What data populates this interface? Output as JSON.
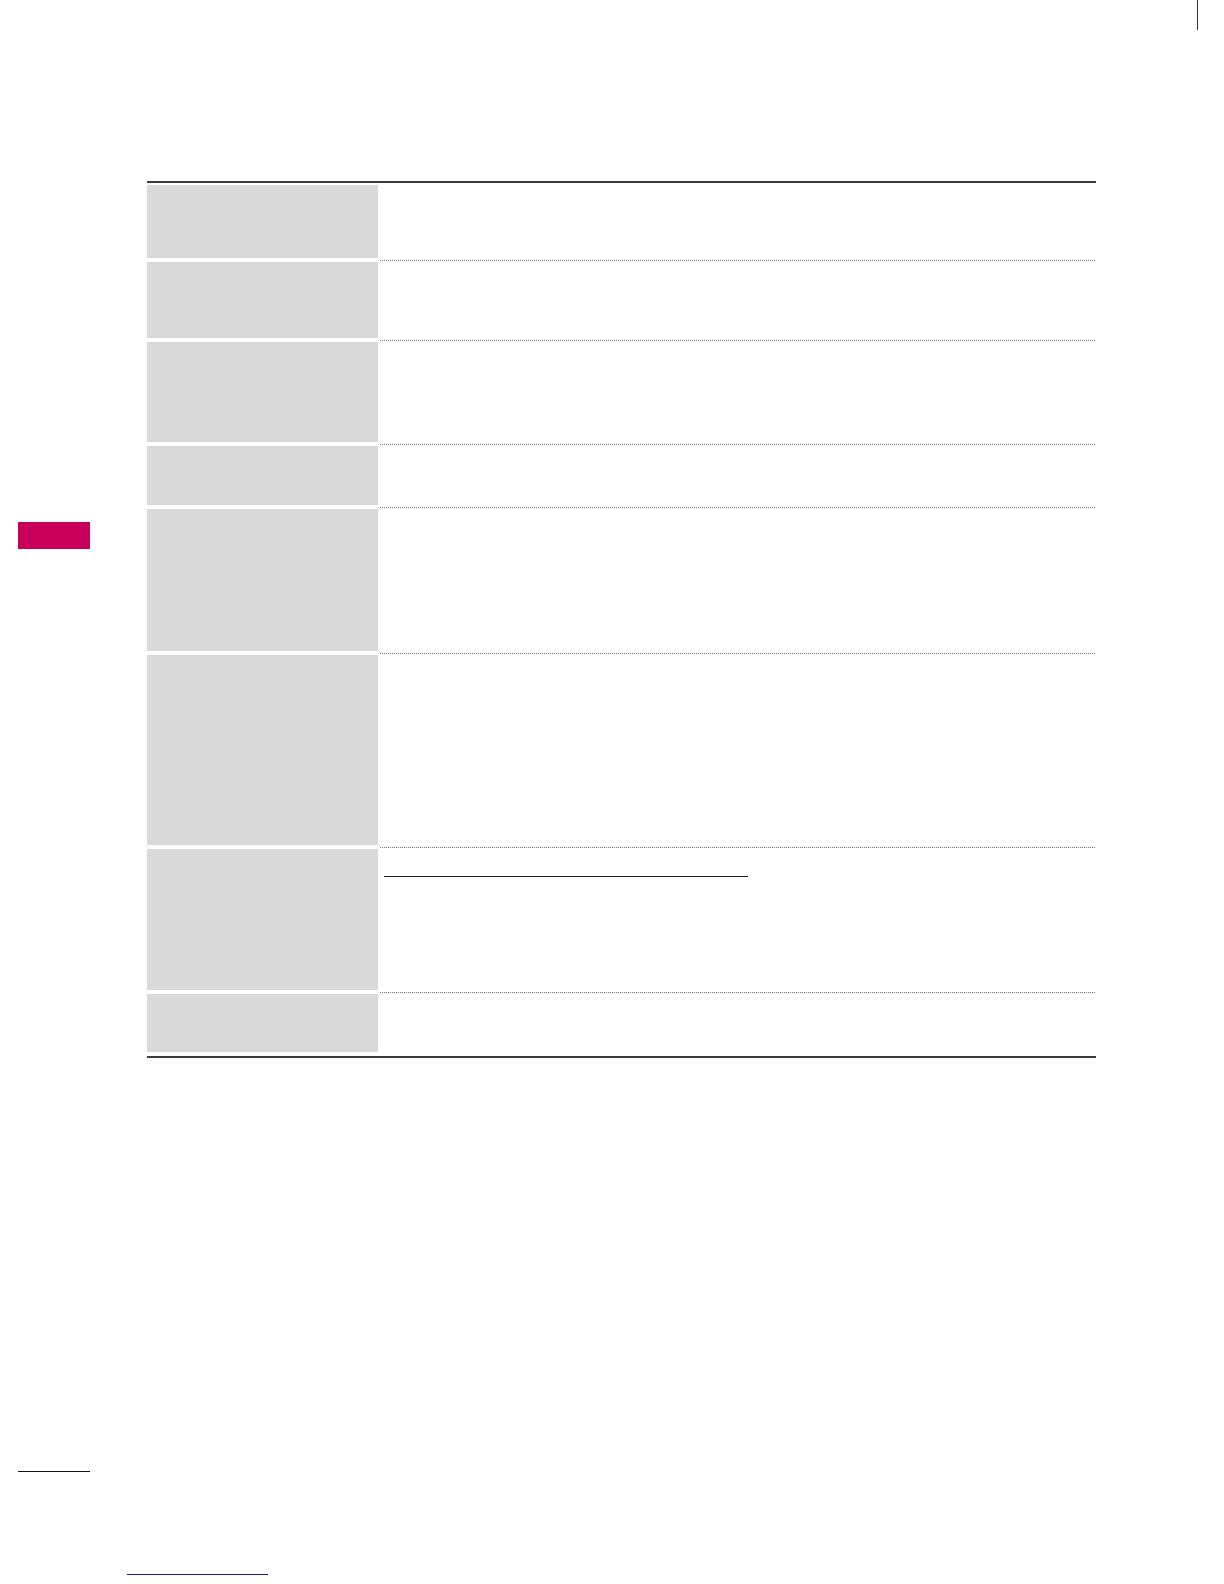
{
  "colors": {
    "section_tab": "#c8005a",
    "label_cell": "#d9d9d9",
    "rule": "#3c3c3c",
    "link_underline": "#1a1a80"
  },
  "table": {
    "rows": [
      {
        "label": "",
        "description": ""
      },
      {
        "label": "",
        "description": ""
      },
      {
        "label": "",
        "description": ""
      },
      {
        "label": "",
        "description": ""
      },
      {
        "label": "",
        "description": ""
      },
      {
        "label": "",
        "description": ""
      },
      {
        "label": "",
        "description": ""
      },
      {
        "label": "",
        "description": ""
      }
    ]
  }
}
